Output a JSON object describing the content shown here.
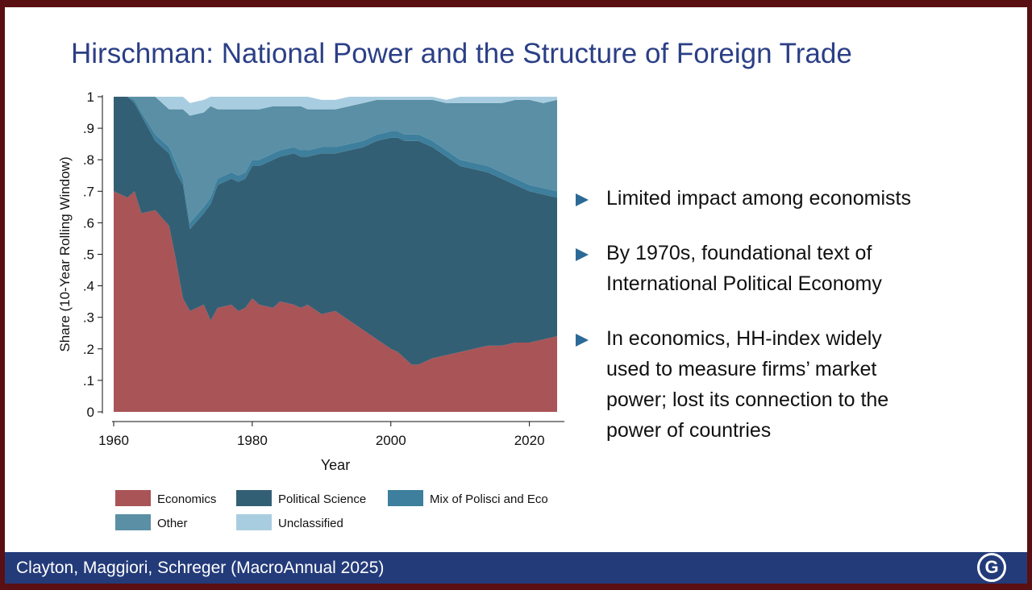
{
  "slide": {
    "title": "Hirschman: National Power and the Structure of Foreign Trade",
    "bullets": [
      {
        "lines": [
          "Limited impact among economists"
        ]
      },
      {
        "lines": [
          "By 1970s, foundational text of",
          "International Political Economy"
        ]
      },
      {
        "lines": [
          "In economics, HH-index widely",
          "used to measure firms’ market",
          "power; lost its connection to the",
          "power of countries"
        ]
      }
    ],
    "footer": "Clayton, Maggiori, Schreger (MacroAnnual 2025)",
    "logo_letter": "G"
  },
  "chart_data": {
    "type": "area",
    "stacked": true,
    "xlabel": "Year",
    "ylabel": "Share (10-Year Rolling Window)",
    "xlim": [
      1960,
      2024
    ],
    "ylim": [
      0,
      1
    ],
    "xticks": [
      1960,
      1980,
      2000,
      2020
    ],
    "yticks": [
      "0",
      ".1",
      ".2",
      ".3",
      ".4",
      ".5",
      ".6",
      ".7",
      ".8",
      ".9",
      "1"
    ],
    "legend_position": "bottom",
    "x": [
      1960,
      1962,
      1963,
      1964,
      1966,
      1968,
      1969,
      1970,
      1971,
      1973,
      1974,
      1975,
      1977,
      1978,
      1979,
      1980,
      1981,
      1983,
      1984,
      1986,
      1987,
      1988,
      1990,
      1992,
      1994,
      1996,
      1998,
      2000,
      2001,
      2002,
      2003,
      2004,
      2006,
      2008,
      2010,
      2012,
      2014,
      2016,
      2018,
      2020,
      2022,
      2024
    ],
    "series": [
      {
        "name": "Economics",
        "color": "#a95457",
        "values": [
          0.7,
          0.68,
          0.7,
          0.63,
          0.64,
          0.59,
          0.48,
          0.36,
          0.32,
          0.34,
          0.29,
          0.33,
          0.34,
          0.32,
          0.33,
          0.36,
          0.34,
          0.33,
          0.35,
          0.34,
          0.33,
          0.34,
          0.31,
          0.32,
          0.29,
          0.26,
          0.23,
          0.2,
          0.19,
          0.17,
          0.15,
          0.15,
          0.17,
          0.18,
          0.19,
          0.2,
          0.21,
          0.21,
          0.22,
          0.22,
          0.23,
          0.24
        ]
      },
      {
        "name": "Political Science",
        "color": "#335f74",
        "values": [
          0.3,
          0.32,
          0.28,
          0.31,
          0.22,
          0.23,
          0.28,
          0.36,
          0.26,
          0.29,
          0.37,
          0.39,
          0.4,
          0.41,
          0.41,
          0.42,
          0.44,
          0.47,
          0.46,
          0.48,
          0.48,
          0.47,
          0.51,
          0.5,
          0.54,
          0.58,
          0.63,
          0.67,
          0.68,
          0.69,
          0.71,
          0.71,
          0.67,
          0.63,
          0.59,
          0.57,
          0.55,
          0.53,
          0.5,
          0.48,
          0.46,
          0.44
        ]
      },
      {
        "name": "Mix of Polisci and Eco",
        "color": "#3d7f9c",
        "values": [
          0.0,
          0.0,
          0.01,
          0.01,
          0.02,
          0.02,
          0.03,
          0.02,
          0.02,
          0.02,
          0.02,
          0.02,
          0.02,
          0.02,
          0.02,
          0.02,
          0.02,
          0.02,
          0.02,
          0.02,
          0.02,
          0.02,
          0.02,
          0.02,
          0.02,
          0.02,
          0.02,
          0.02,
          0.02,
          0.02,
          0.02,
          0.02,
          0.02,
          0.02,
          0.02,
          0.02,
          0.02,
          0.02,
          0.02,
          0.02,
          0.02,
          0.02
        ]
      },
      {
        "name": "Other",
        "color": "#5a8fa5",
        "values": [
          0.0,
          0.0,
          0.01,
          0.05,
          0.12,
          0.12,
          0.17,
          0.22,
          0.34,
          0.3,
          0.29,
          0.22,
          0.2,
          0.21,
          0.2,
          0.16,
          0.16,
          0.15,
          0.14,
          0.13,
          0.14,
          0.13,
          0.12,
          0.12,
          0.12,
          0.12,
          0.11,
          0.1,
          0.1,
          0.11,
          0.11,
          0.11,
          0.13,
          0.15,
          0.18,
          0.19,
          0.2,
          0.22,
          0.25,
          0.27,
          0.27,
          0.29
        ]
      },
      {
        "name": "Unclassified",
        "color": "#a9cde0",
        "values": [
          0.0,
          0.0,
          0.0,
          0.0,
          0.0,
          0.04,
          0.04,
          0.04,
          0.04,
          0.04,
          0.03,
          0.04,
          0.04,
          0.04,
          0.04,
          0.04,
          0.04,
          0.03,
          0.03,
          0.03,
          0.03,
          0.04,
          0.03,
          0.03,
          0.03,
          0.02,
          0.01,
          0.01,
          0.01,
          0.01,
          0.01,
          0.01,
          0.01,
          0.01,
          0.02,
          0.02,
          0.02,
          0.02,
          0.01,
          0.01,
          0.02,
          0.01
        ]
      }
    ]
  }
}
